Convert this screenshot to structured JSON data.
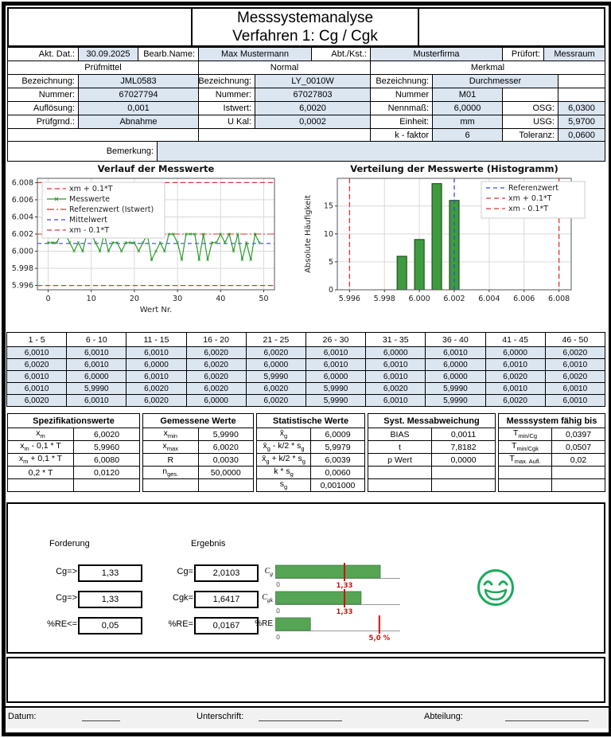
{
  "title": {
    "line1": "Messsystemanalyse",
    "line2": "Verfahren 1: Cg / Cgk"
  },
  "form": {
    "akt_dat": {
      "label": "Akt. Dat.:",
      "value": "30.09.2025"
    },
    "bearb_name": {
      "label": "Bearb.Name:",
      "value": "Max Mustermann"
    },
    "abt_kst": {
      "label": "Abt./Kst.:",
      "value": "Musterfirma"
    },
    "pruefort": {
      "label": "Prüfort:",
      "value": "Messraum"
    },
    "group_headers": {
      "pruefmittel": "Prüfmittel",
      "normal": "Normal",
      "merkmal": "Merkmal"
    },
    "pruefmittel": {
      "bezeichnung": {
        "label": "Bezeichnung:",
        "value": "JML0583"
      },
      "nummer": {
        "label": "Nummer:",
        "value": "67027794"
      },
      "aufloesung": {
        "label": "Auflösung:",
        "value": "0,001"
      },
      "pruefgrund": {
        "label": "Prüfgrnd.:",
        "value": "Abnahme"
      }
    },
    "normal": {
      "bezeichnung": {
        "label": "Bezeichnung:",
        "value": "LY_0010W"
      },
      "nummer": {
        "label": "Nummer:",
        "value": "67027803"
      },
      "istwert": {
        "label": "Istwert:",
        "value": "6,0020"
      },
      "u_kal": {
        "label": "U Kal:",
        "value": "0,0002"
      }
    },
    "merkmal": {
      "bezeichnung": {
        "label": "Bezeichnung:",
        "value": "Durchmesser"
      },
      "nummer": {
        "label": "Nummer",
        "value": "M01"
      },
      "nennmass": {
        "label": "Nennmaß:",
        "value": "6,0000"
      },
      "osg": {
        "label": "OSG:",
        "value": "6,0300"
      },
      "einheit": {
        "label": "Einheit:",
        "value": "mm"
      },
      "usg": {
        "label": "USG:",
        "value": "5,9700"
      },
      "k_faktor": {
        "label": "k - faktor",
        "value": "6"
      },
      "toleranz": {
        "label": "Toleranz:",
        "value": "0,0600"
      }
    },
    "bemerkung": {
      "label": "Bemerkung:",
      "value": ""
    }
  },
  "measurements": {
    "col_headers": [
      "1 - 5",
      "6 - 10",
      "11 - 15",
      "16 - 20",
      "21 - 25",
      "26 - 30",
      "31 - 35",
      "36 - 40",
      "41 - 45",
      "46 - 50"
    ],
    "rows": [
      [
        "6,0010",
        "6,0010",
        "6,0010",
        "6,0020",
        "6,0020",
        "6,0010",
        "6,0000",
        "6,0010",
        "6,0000",
        "6,0020"
      ],
      [
        "6,0020",
        "6,0010",
        "6,0000",
        "6,0020",
        "6,0000",
        "6,0010",
        "6,0010",
        "6,0000",
        "6,0010",
        "6,0010"
      ],
      [
        "6,0010",
        "6,0000",
        "6,0010",
        "6,0020",
        "5,9990",
        "6,0000",
        "6,0010",
        "6,0000",
        "6,0020",
        "6,0020"
      ],
      [
        "6,0010",
        "5,9990",
        "6,0020",
        "6,0020",
        "6,0020",
        "5,9990",
        "6,0020",
        "5,9990",
        "6,0010",
        "6,0010"
      ],
      [
        "6,0020",
        "6,0010",
        "6,0020",
        "6,0000",
        "6,0020",
        "5,9990",
        "6,0010",
        "5,9990",
        "6,0020",
        "6,0010"
      ]
    ]
  },
  "stats": {
    "sections": [
      {
        "title": "Spezifikationswerte",
        "rows": [
          [
            "x_{m}",
            "6,0020"
          ],
          [
            "x_{m} - 0,1 * T",
            "5,9960"
          ],
          [
            "x_{m} + 0,1 * T",
            "6,0080"
          ],
          [
            "0,2 * T",
            "0,0120"
          ],
          [
            "",
            ""
          ]
        ]
      },
      {
        "title": "Gemessene Werte",
        "rows": [
          [
            "x_{min}",
            "5,9990"
          ],
          [
            "x_{max}",
            "6,0020"
          ],
          [
            "R",
            "0,0030"
          ],
          [
            "n_{ges.}",
            "50,0000"
          ],
          [
            "",
            ""
          ]
        ]
      },
      {
        "title": "Statistische Werte",
        "rows": [
          [
            "x̄_{g}",
            "6,0009"
          ],
          [
            "x̄_{g} - k/2 * s_{g}",
            "5,9979"
          ],
          [
            "x̄_{g} + k/2 * s_{g}",
            "6,0039"
          ],
          [
            "k * s_{g}",
            "0,0060"
          ],
          [
            "s_{g}",
            "0,001000"
          ]
        ]
      },
      {
        "title": "Syst. Messabweichung",
        "rows": [
          [
            "BIAS",
            "0,0011"
          ],
          [
            "t",
            "7,8182"
          ],
          [
            "p Wert",
            "0,0000"
          ],
          [
            "",
            ""
          ],
          [
            "",
            ""
          ]
        ]
      },
      {
        "title": "Messsystem fähig bis",
        "rows": [
          [
            "T_{min/Cg}",
            "0,0397"
          ],
          [
            "T_{min/Cgk}",
            "0,0507"
          ],
          [
            "T_{max. Aufl.}",
            "0,02"
          ],
          [
            "",
            ""
          ],
          [
            "",
            ""
          ]
        ]
      }
    ]
  },
  "results": {
    "forderung_header": "Forderung",
    "ergebnis_header": "Ergebnis",
    "rows": [
      {
        "req_label": "Cg=>",
        "req_value": "1,33",
        "res_label": "Cg=",
        "res_value": "2,0103",
        "bar_label": "C_{g}"
      },
      {
        "req_label": "Cg=>",
        "req_value": "1,33",
        "res_label": "Cgk=",
        "res_value": "1,6417",
        "bar_label": "C_{gk}"
      },
      {
        "req_label": "%RE<=",
        "req_value": "0,05",
        "res_label": "%RE=",
        "res_value": "0,0167",
        "bar_label": "%RE"
      }
    ],
    "smiley": "happy-green"
  },
  "chart_data": [
    {
      "type": "line",
      "title": "Verlauf der Messwerte",
      "xlabel": "Wert Nr.",
      "values": [
        6.001,
        6.001,
        6.001,
        6.002,
        6.002,
        6.001,
        6.0,
        6.001,
        6.0,
        6.002,
        6.002,
        6.001,
        6.0,
        6.002,
        6.0,
        6.001,
        6.001,
        6.0,
        6.001,
        6.001,
        6.001,
        6.0,
        6.001,
        6.002,
        5.999,
        6.0,
        6.001,
        6.0,
        6.002,
        6.002,
        6.001,
        5.999,
        6.002,
        6.002,
        6.002,
        5.999,
        6.002,
        5.999,
        6.001,
        6.001,
        6.002,
        6.001,
        6.002,
        6.0,
        6.002,
        5.999,
        6.001,
        5.999,
        6.002,
        6.001
      ],
      "xlim": [
        -2.5,
        52.5
      ],
      "ylim": [
        5.9955,
        6.0085
      ],
      "xticks": [
        0,
        10,
        20,
        30,
        40,
        50
      ],
      "yticks": [
        5.996,
        5.998,
        6.0,
        6.002,
        6.004,
        6.006,
        6.008
      ],
      "ref_lines": {
        "upper": 6.008,
        "lower": 5.996,
        "reference": 6.002,
        "mean": 6.0009
      },
      "legend": [
        "xm + 0.1*T",
        "Messwerte",
        "Referenzwert (Istwert)",
        "Mittelwert",
        "xm - 0.1*T"
      ],
      "legend_position": "upper left",
      "grid": true
    },
    {
      "type": "bar",
      "title": "Verteilung der Messwerte (Histogramm)",
      "ylabel": "Absolute Häufigkeit",
      "centers": [
        5.999,
        6.0,
        6.001,
        6.002
      ],
      "counts": [
        6,
        9,
        19,
        16
      ],
      "bar_width": 0.00055,
      "xlim": [
        5.9953,
        6.0087
      ],
      "ylim": [
        0,
        19.95
      ],
      "xticks": [
        5.996,
        5.998,
        6.0,
        6.002,
        6.004,
        6.006,
        6.008
      ],
      "yticks": [
        0,
        5,
        10,
        15
      ],
      "vlines": {
        "reference": 6.002,
        "upper": 6.008,
        "lower": 5.996
      },
      "legend": [
        "Referenzwert",
        "xm + 0.1*T",
        "xm - 0.1*T"
      ],
      "legend_position": "upper right",
      "grid": true
    },
    {
      "type": "bar",
      "orientation": "horizontal",
      "label": "C_{g}",
      "value": 2.0103,
      "xmax": 2.4,
      "marker": 1.33,
      "marker_label": "1,33",
      "zero_label": "0"
    },
    {
      "type": "bar",
      "orientation": "horizontal",
      "label": "C_{gk}",
      "value": 1.6417,
      "xmax": 2.4,
      "marker": 1.33,
      "marker_label": "1,33",
      "zero_label": "0"
    },
    {
      "type": "bar",
      "orientation": "horizontal",
      "label": "%RE",
      "value": 0.0167,
      "xmax": 0.06,
      "marker": 0.05,
      "marker_label": "5,0 %",
      "zero_label": "0"
    }
  ],
  "footer": {
    "datum_label": "Datum:",
    "unterschrift_label": "Unterschrift:",
    "abteilung_label": "Abteilung:"
  }
}
